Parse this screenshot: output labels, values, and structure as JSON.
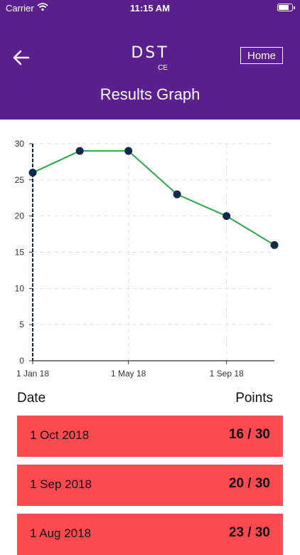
{
  "status_bar": {
    "carrier": "Carrier",
    "time": "11:15 AM",
    "battery_level": 0.85
  },
  "header": {
    "logo": "DST",
    "logo_mark": "CE",
    "home_label": "Home",
    "title": "Results Graph"
  },
  "colors": {
    "header_bg": "#5b1f8e",
    "line": "#2ba84a",
    "point": "#0f2a4a",
    "row_bg": "#fc4a51"
  },
  "chart_data": {
    "type": "line",
    "x": [
      "2018-01-01",
      "2018-03-01",
      "2018-05-01",
      "2018-07-01",
      "2018-09-01",
      "2018-10-31"
    ],
    "values": [
      26,
      29,
      29,
      23,
      20,
      16
    ],
    "xticks": [
      "1 Jan 18",
      "1 May 18",
      "1 Sep 18"
    ],
    "yticks": [
      "0",
      "5",
      "10",
      "15",
      "20",
      "25",
      "30"
    ],
    "ylim": [
      0,
      30
    ],
    "grid": true
  },
  "table": {
    "headers": {
      "date": "Date",
      "points": "Points"
    },
    "rows": [
      {
        "date": "1 Oct 2018",
        "points": "16 / 30"
      },
      {
        "date": "1 Sep 2018",
        "points": "20 / 30"
      },
      {
        "date": "1 Aug 2018",
        "points": "23 / 30"
      }
    ]
  }
}
